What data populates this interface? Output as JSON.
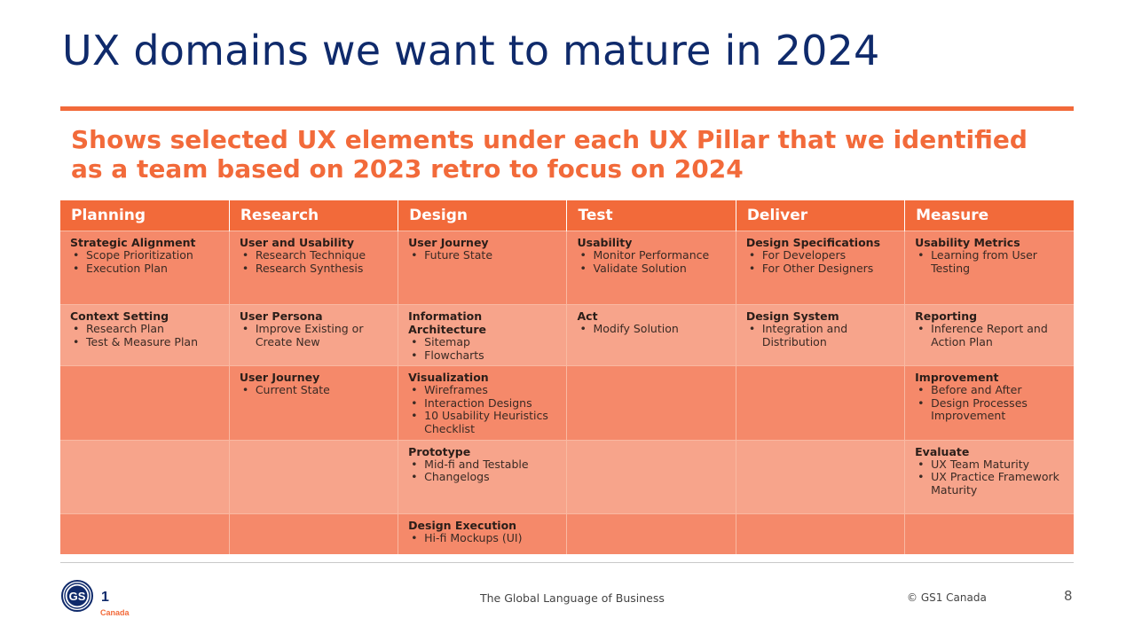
{
  "slide": {
    "title": "UX domains we want to mature in 2024",
    "subtitle": "Shows selected UX elements under each UX Pillar that we identified as a team based on 2023 retro to focus on 2024",
    "accent_color": "#f26a3a",
    "title_color": "#0f2a6b"
  },
  "table": {
    "headers": [
      "Planning",
      "Research",
      "Design",
      "Test",
      "Deliver",
      "Measure"
    ],
    "rows": [
      [
        {
          "title": "Strategic Alignment",
          "items": [
            "Scope Prioritization",
            "Execution Plan"
          ]
        },
        {
          "title": "User and Usability",
          "items": [
            "Research Technique",
            "Research Synthesis"
          ]
        },
        {
          "title": "User Journey",
          "items": [
            "Future State"
          ]
        },
        {
          "title": "Usability",
          "items": [
            "Monitor Performance",
            "Validate Solution"
          ]
        },
        {
          "title": "Design Specifications",
          "items": [
            "For Developers",
            "For Other Designers"
          ]
        },
        {
          "title": "Usability Metrics",
          "items": [
            "Learning from User Testing"
          ]
        }
      ],
      [
        {
          "title": "Context Setting",
          "items": [
            "Research Plan",
            "Test & Measure Plan"
          ]
        },
        {
          "title": "User Persona",
          "items": [
            "Improve Existing or Create New"
          ]
        },
        {
          "title": "Information Architecture",
          "items": [
            "Sitemap",
            "Flowcharts"
          ]
        },
        {
          "title": "Act",
          "items": [
            "Modify Solution"
          ]
        },
        {
          "title": "Design System",
          "items": [
            "Integration and Distribution"
          ]
        },
        {
          "title": "Reporting",
          "items": [
            "Inference Report and Action Plan"
          ]
        }
      ],
      [
        {
          "title": "",
          "items": []
        },
        {
          "title": "User Journey",
          "items": [
            "Current State"
          ]
        },
        {
          "title": "Visualization",
          "items": [
            "Wireframes",
            "Interaction Designs",
            "10 Usability Heuristics Checklist"
          ]
        },
        {
          "title": "",
          "items": []
        },
        {
          "title": "",
          "items": []
        },
        {
          "title": "Improvement",
          "items": [
            "Before and After",
            "Design Processes Improvement"
          ]
        }
      ],
      [
        {
          "title": "",
          "items": []
        },
        {
          "title": "",
          "items": []
        },
        {
          "title": "Prototype",
          "items": [
            "Mid-fi and Testable",
            "Changelogs"
          ]
        },
        {
          "title": "",
          "items": []
        },
        {
          "title": "",
          "items": []
        },
        {
          "title": "Evaluate",
          "items": [
            "UX Team Maturity",
            "UX Practice Framework Maturity"
          ]
        }
      ],
      [
        {
          "title": "",
          "items": []
        },
        {
          "title": "",
          "items": []
        },
        {
          "title": "Design Execution",
          "items": [
            "Hi-fi Mockups (UI)"
          ]
        },
        {
          "title": "",
          "items": []
        },
        {
          "title": "",
          "items": []
        },
        {
          "title": "",
          "items": []
        }
      ]
    ]
  },
  "footer": {
    "logo_text": "GS1",
    "logo_subtext": "Canada",
    "tagline": "The Global Language of Business",
    "copyright": "© GS1 Canada",
    "page_number": "8"
  }
}
